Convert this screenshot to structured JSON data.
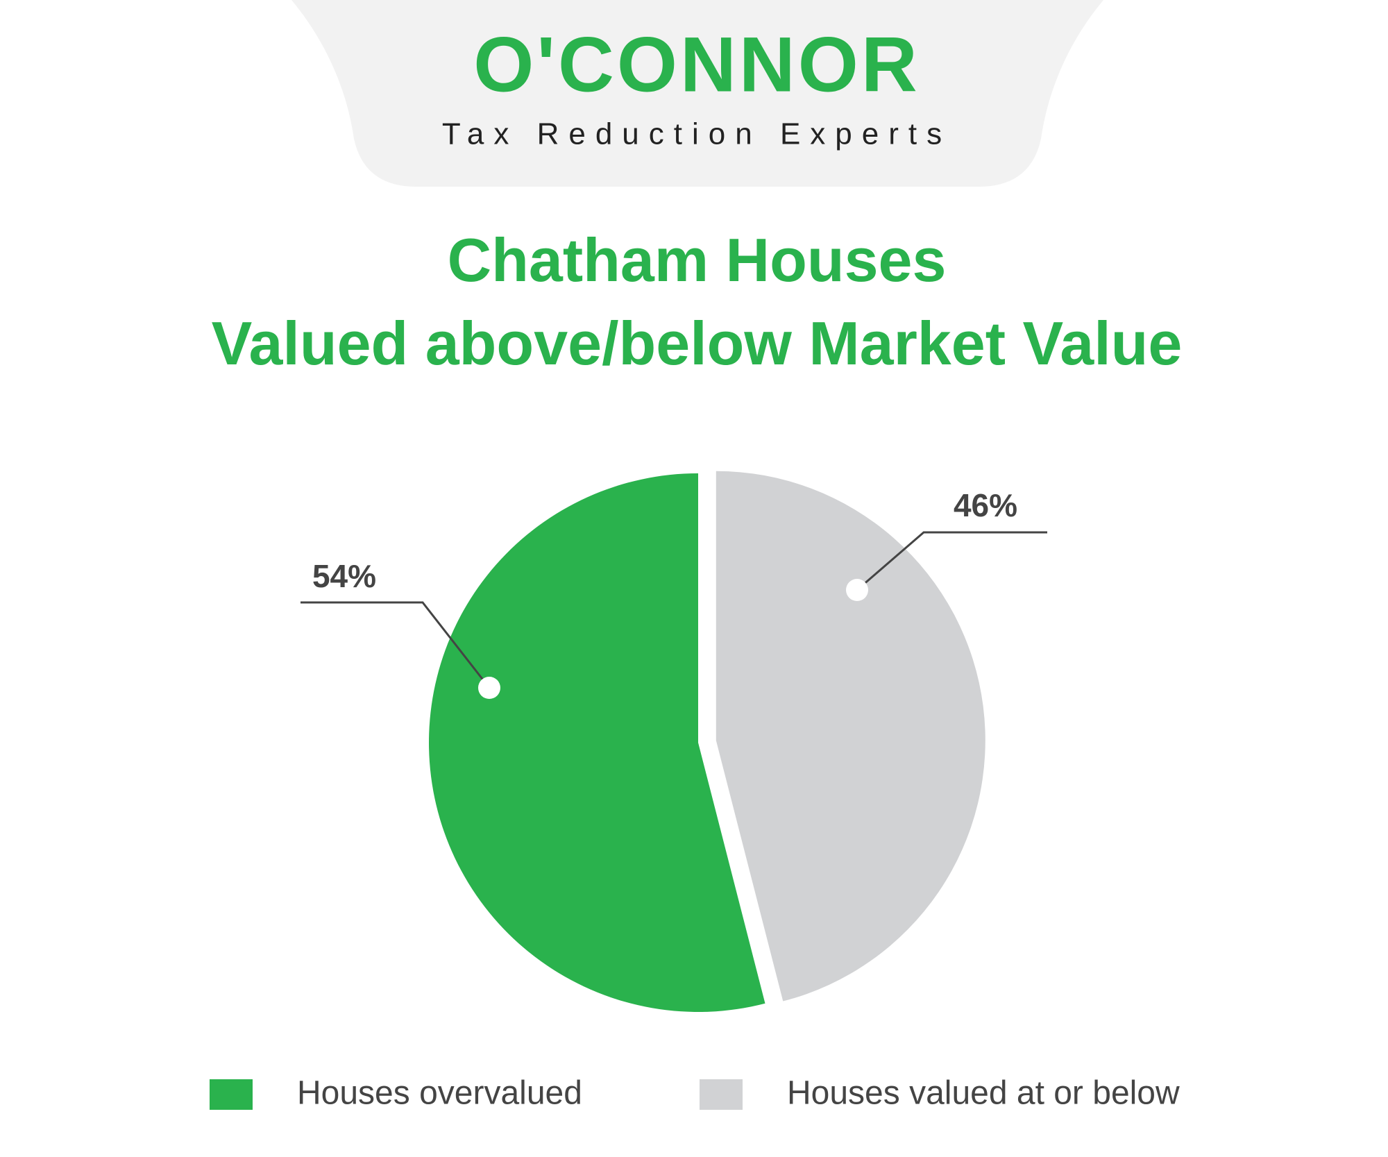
{
  "logo": {
    "name": "O'CONNOR",
    "tagline": "Tax Reduction Experts"
  },
  "chart_data": {
    "type": "pie",
    "title": "Chatham Houses Valued above/below Market Value",
    "categories": [
      "Houses overvalued",
      "Houses valued at or below"
    ],
    "values": [
      54,
      46
    ],
    "value_labels": [
      "54%",
      "46%"
    ],
    "colors": [
      "#2ab24d",
      "#d1d2d4"
    ],
    "legend": "bottom"
  }
}
